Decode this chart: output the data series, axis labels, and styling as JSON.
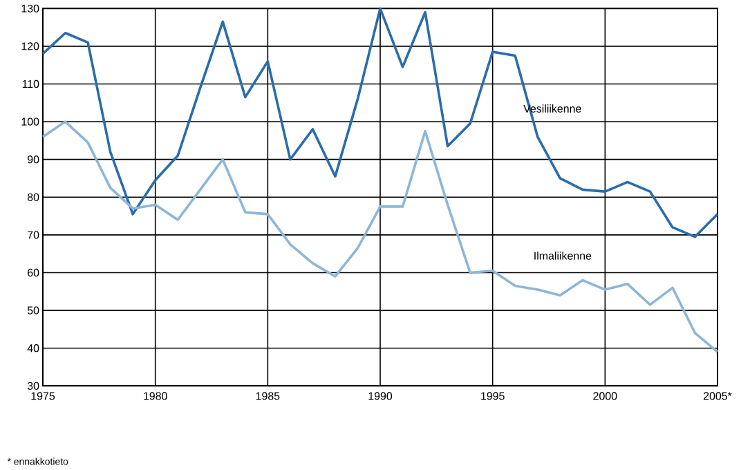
{
  "chart_data": {
    "type": "line",
    "x": [
      1975,
      1976,
      1977,
      1978,
      1979,
      1980,
      1981,
      1982,
      1983,
      1984,
      1985,
      1986,
      1987,
      1988,
      1989,
      1990,
      1991,
      1992,
      1993,
      1994,
      1995,
      1996,
      1997,
      1998,
      1999,
      2000,
      2001,
      2002,
      2003,
      2004,
      2005
    ],
    "series": [
      {
        "name": "Vesiliikenne",
        "color": "#2a6cad",
        "values": [
          118,
          123.5,
          121,
          92,
          75.5,
          84.5,
          91,
          109,
          126.5,
          106.5,
          116,
          90,
          98,
          85.5,
          106,
          130,
          114.5,
          129,
          93.5,
          99.5,
          118.5,
          117.5,
          96,
          85,
          82,
          81.5,
          84,
          81.5,
          72,
          69.5,
          75.5
        ]
      },
      {
        "name": "Ilmaliikenne",
        "color": "#8db6d8",
        "values": [
          96,
          100,
          94.5,
          82.5,
          77,
          78,
          74,
          82,
          90,
          76,
          75.5,
          67.5,
          62.5,
          59,
          66.5,
          77.5,
          77.5,
          97.5,
          78,
          60,
          60.5,
          56.5,
          55.5,
          54,
          58,
          55.5,
          57,
          51.5,
          56,
          44,
          39
        ]
      }
    ],
    "xlim": [
      1975,
      2005
    ],
    "ylim": [
      30,
      130
    ],
    "xticks": [
      1975,
      1980,
      1985,
      1990,
      1995,
      2000,
      {
        "value": 2005,
        "label": "2005*"
      }
    ],
    "yticks": [
      30,
      40,
      50,
      60,
      70,
      80,
      90,
      100,
      110,
      120,
      130
    ],
    "grid": true,
    "marker": "none",
    "line_style": "solid",
    "annotations": [
      "* ennakkotieto"
    ]
  }
}
